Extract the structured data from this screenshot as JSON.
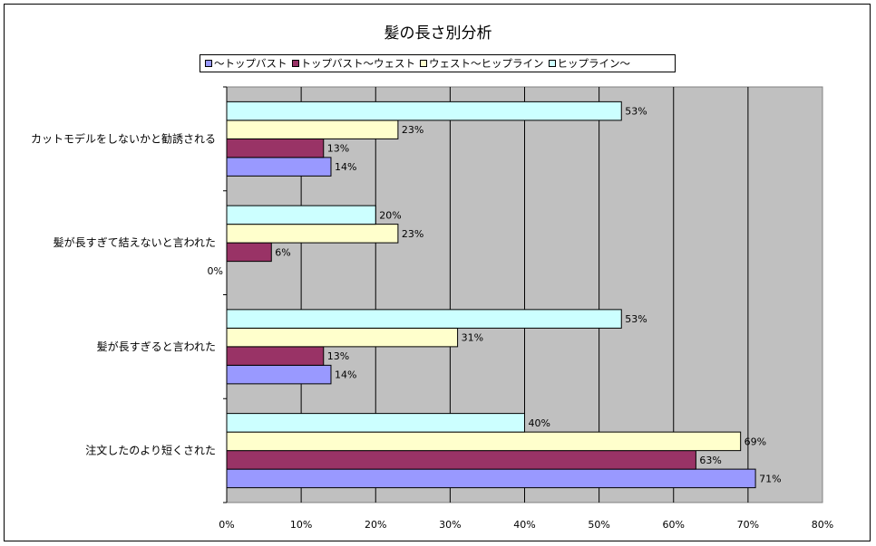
{
  "title": "髪の長さ別分析",
  "chart_data": {
    "type": "bar",
    "orientation": "horizontal",
    "title": "髪の長さ別分析",
    "categories": [
      "注文したのより短くされた",
      "髪が長すぎると言われた",
      "髪が長すぎて結えないと言われた",
      "カットモデルをしないかと勧誘される"
    ],
    "series": [
      {
        "name": "〜トップバスト",
        "color": "#9999ff",
        "values": [
          71,
          14,
          0,
          14
        ],
        "labels": [
          "71%",
          "14%",
          "0%",
          "14%"
        ]
      },
      {
        "name": "トップバスト〜ウェスト",
        "color": "#993366",
        "values": [
          63,
          13,
          6,
          13
        ],
        "labels": [
          "63%",
          "13%",
          "6%",
          "13%"
        ]
      },
      {
        "name": "ウェスト〜ヒップライン",
        "color": "#ffffcc",
        "values": [
          69,
          31,
          23,
          23
        ],
        "labels": [
          "69%",
          "31%",
          "23%",
          "23%"
        ]
      },
      {
        "name": "ヒップライン〜",
        "color": "#ccffff",
        "values": [
          40,
          53,
          20,
          53
        ],
        "labels": [
          "40%",
          "53%",
          "20%",
          "53%"
        ]
      }
    ],
    "xlim": [
      0,
      80
    ],
    "xticks": [
      "0%",
      "10%",
      "20%",
      "30%",
      "40%",
      "50%",
      "60%",
      "70%",
      "80%"
    ],
    "grid": true,
    "plot_background": "#c0c0c0",
    "legend_position": "top"
  }
}
